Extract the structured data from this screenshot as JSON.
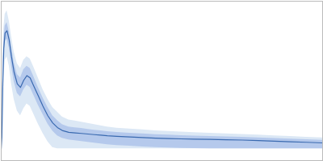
{
  "chart_data": {
    "type": "line",
    "x": [
      0,
      2,
      5,
      8,
      12,
      18,
      25,
      32,
      40,
      50,
      60,
      70,
      80,
      90,
      100,
      115,
      130,
      145,
      160,
      175,
      190,
      210,
      230,
      250,
      270,
      290,
      310,
      330,
      360,
      400,
      440,
      480,
      520,
      560,
      600,
      650,
      700,
      750,
      800,
      850,
      900,
      950,
      1000
    ],
    "values": [
      0,
      0.1,
      0.55,
      0.85,
      0.98,
      1.0,
      0.92,
      0.78,
      0.65,
      0.55,
      0.52,
      0.58,
      0.62,
      0.6,
      0.54,
      0.45,
      0.36,
      0.28,
      0.22,
      0.18,
      0.155,
      0.14,
      0.135,
      0.13,
      0.125,
      0.12,
      0.115,
      0.11,
      0.105,
      0.1,
      0.095,
      0.09,
      0.087,
      0.084,
      0.082,
      0.08,
      0.077,
      0.074,
      0.07,
      0.065,
      0.06,
      0.055,
      0.05
    ],
    "color": "#3a6ab0",
    "bands": [
      {
        "upper": [
          0,
          0.22,
          0.72,
          1.02,
          1.14,
          1.17,
          1.08,
          0.95,
          0.82,
          0.72,
          0.68,
          0.75,
          0.78,
          0.76,
          0.7,
          0.6,
          0.5,
          0.42,
          0.35,
          0.31,
          0.27,
          0.245,
          0.235,
          0.225,
          0.215,
          0.205,
          0.195,
          0.185,
          0.175,
          0.167,
          0.16,
          0.153,
          0.147,
          0.142,
          0.137,
          0.132,
          0.127,
          0.122,
          0.116,
          0.11,
          0.104,
          0.098,
          0.092
        ],
        "lower": [
          0,
          0,
          0.3,
          0.6,
          0.75,
          0.78,
          0.7,
          0.55,
          0.42,
          0.32,
          0.28,
          0.34,
          0.38,
          0.36,
          0.3,
          0.21,
          0.13,
          0.06,
          0.01,
          0,
          0,
          0,
          0,
          0,
          0,
          0,
          0,
          0,
          0,
          0,
          0,
          0,
          0,
          0,
          0,
          0,
          0,
          0,
          0,
          0,
          0,
          0,
          0
        ],
        "color": "#dce8f5"
      },
      {
        "upper": [
          0,
          0.15,
          0.62,
          0.92,
          1.04,
          1.07,
          0.99,
          0.86,
          0.73,
          0.63,
          0.6,
          0.67,
          0.7,
          0.68,
          0.62,
          0.52,
          0.43,
          0.35,
          0.28,
          0.24,
          0.205,
          0.185,
          0.178,
          0.172,
          0.165,
          0.158,
          0.152,
          0.145,
          0.138,
          0.132,
          0.126,
          0.12,
          0.116,
          0.112,
          0.108,
          0.105,
          0.101,
          0.097,
          0.092,
          0.087,
          0.082,
          0.077,
          0.072
        ],
        "lower": [
          0,
          0.05,
          0.48,
          0.77,
          0.91,
          0.93,
          0.85,
          0.7,
          0.57,
          0.47,
          0.44,
          0.5,
          0.54,
          0.52,
          0.46,
          0.37,
          0.29,
          0.21,
          0.15,
          0.11,
          0.09,
          0.075,
          0.068,
          0.062,
          0.055,
          0.048,
          0.042,
          0.035,
          0.028,
          0.022,
          0.016,
          0.01,
          0.007,
          0.004,
          0.002,
          0,
          0,
          0,
          0,
          0,
          0,
          0,
          0
        ],
        "color": "#b5c9ec"
      }
    ],
    "xlim": [
      0,
      1000
    ],
    "ylim": [
      -0.1,
      1.25
    ],
    "tick_labels": false,
    "grid": false
  }
}
